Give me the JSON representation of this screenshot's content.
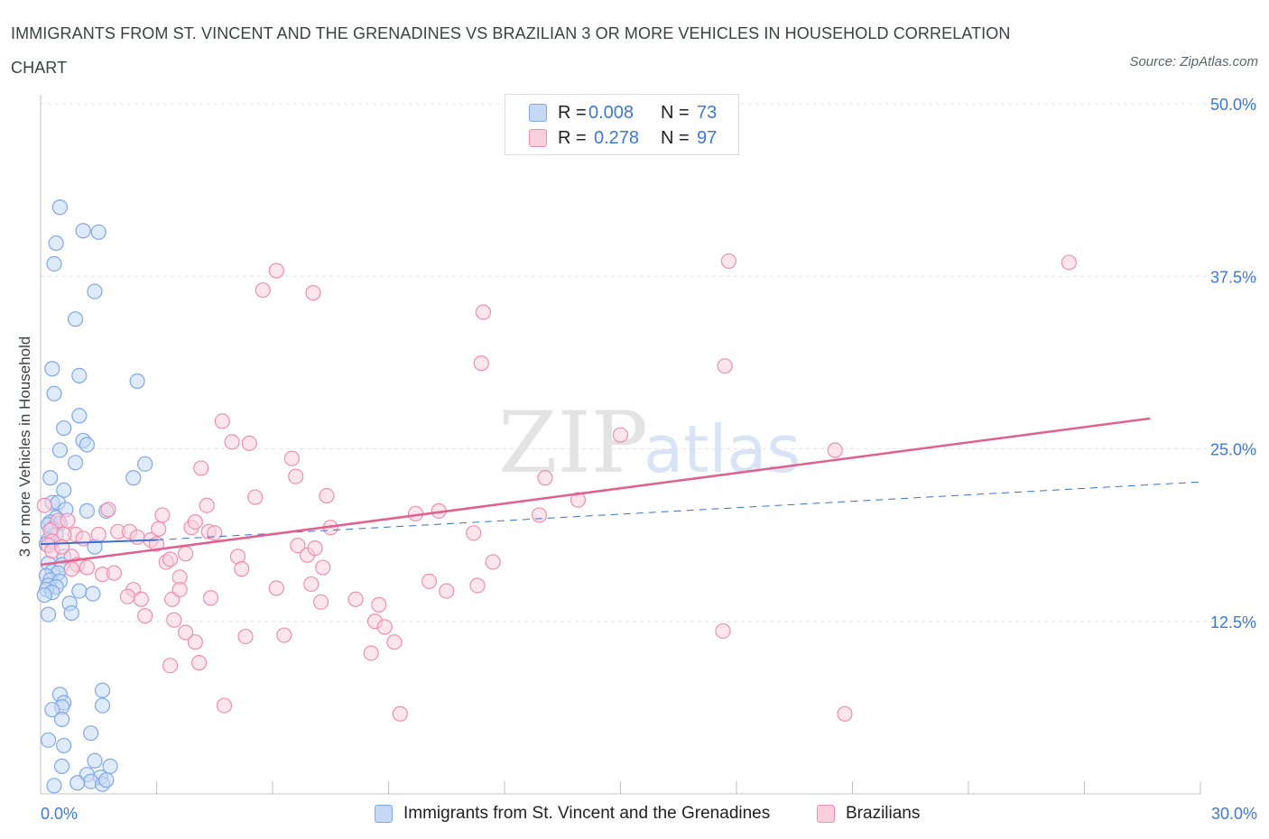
{
  "title": "IMMIGRANTS FROM ST. VINCENT AND THE GRENADINES VS BRAZILIAN 3 OR MORE VEHICLES IN HOUSEHOLD CORRELATION CHART",
  "source": "Source: ZipAtlas.com",
  "watermark": {
    "zip": "ZIP",
    "atlas": "atlas"
  },
  "colors": {
    "blue": "#7fa8e8",
    "blue_fill": "#c5d8f6",
    "blue_line": "#3a6fd0",
    "pink": "#ee8fb0",
    "pink_fill": "#f9cfdd",
    "pink_line": "#e0608e",
    "axis_text": "#3c78d8",
    "grid": "#dfe3ea"
  },
  "legend": {
    "rows": [
      {
        "r_label": "R =",
        "r_value": "0.008",
        "n_label": "N =",
        "n_value": "73"
      },
      {
        "r_label": "R =",
        "r_value": "0.278",
        "n_label": "N =",
        "n_value": "97"
      }
    ]
  },
  "bottom_legend": [
    "Immigrants from St. Vincent and the Grenadines",
    "Brazilians"
  ],
  "chart_data": {
    "type": "scatter",
    "title": "IMMIGRANTS FROM ST. VINCENT AND THE GRENADINES VS BRAZILIAN 3 OR MORE VEHICLES IN HOUSEHOLD CORRELATION CHART",
    "xlabel": "",
    "ylabel": "3 or more Vehicles in Household",
    "xlim": [
      0,
      30
    ],
    "ylim": [
      0,
      50
    ],
    "x_tick_labels": [
      "0.0%",
      "30.0%"
    ],
    "y_ticks": [
      12.5,
      25.0,
      37.5,
      50.0
    ],
    "y_tick_labels": [
      "12.5%",
      "25.0%",
      "37.5%",
      "50.0%"
    ],
    "grid": "horizontal dashed",
    "legend_position": "top-center",
    "series": [
      {
        "name": "Immigrants from St. Vincent and the Grenadines",
        "R": 0.008,
        "N": 73,
        "trend": {
          "x": [
            0,
            3
          ],
          "y": [
            18.1,
            18.4
          ],
          "style": "solid"
        },
        "trend_extension": {
          "x": [
            3,
            30
          ],
          "y": [
            18.4,
            22.6
          ],
          "style": "dashed"
        },
        "points": [
          [
            0.5,
            42.5
          ],
          [
            1.1,
            40.8
          ],
          [
            1.5,
            40.7
          ],
          [
            0.4,
            39.9
          ],
          [
            0.35,
            38.4
          ],
          [
            1.4,
            36.4
          ],
          [
            0.9,
            34.4
          ],
          [
            0.3,
            30.8
          ],
          [
            1.0,
            30.3
          ],
          [
            2.5,
            29.9
          ],
          [
            0.35,
            29.0
          ],
          [
            1.0,
            27.4
          ],
          [
            0.6,
            26.5
          ],
          [
            1.1,
            25.6
          ],
          [
            1.2,
            25.3
          ],
          [
            0.5,
            24.9
          ],
          [
            0.9,
            24.0
          ],
          [
            2.7,
            23.9
          ],
          [
            0.25,
            22.9
          ],
          [
            2.4,
            22.9
          ],
          [
            0.6,
            22.0
          ],
          [
            0.3,
            21.1
          ],
          [
            0.45,
            21.1
          ],
          [
            0.65,
            20.6
          ],
          [
            1.2,
            20.5
          ],
          [
            1.7,
            20.5
          ],
          [
            0.4,
            20.0
          ],
          [
            0.25,
            19.7
          ],
          [
            0.5,
            19.6
          ],
          [
            0.2,
            19.5
          ],
          [
            0.3,
            19.2
          ],
          [
            0.4,
            18.8
          ],
          [
            0.2,
            18.4
          ],
          [
            0.15,
            18.1
          ],
          [
            1.4,
            17.9
          ],
          [
            0.6,
            17.2
          ],
          [
            0.2,
            16.7
          ],
          [
            0.55,
            16.6
          ],
          [
            0.3,
            16.1
          ],
          [
            0.45,
            16.0
          ],
          [
            0.15,
            15.8
          ],
          [
            0.25,
            15.5
          ],
          [
            0.5,
            15.4
          ],
          [
            0.2,
            15.1
          ],
          [
            0.4,
            15.0
          ],
          [
            0.15,
            14.8
          ],
          [
            0.3,
            14.6
          ],
          [
            1.0,
            14.7
          ],
          [
            1.35,
            14.5
          ],
          [
            0.1,
            14.4
          ],
          [
            0.75,
            13.8
          ],
          [
            0.8,
            13.1
          ],
          [
            0.2,
            13.0
          ],
          [
            1.6,
            7.5
          ],
          [
            0.5,
            7.2
          ],
          [
            0.6,
            6.6
          ],
          [
            0.55,
            6.3
          ],
          [
            1.6,
            6.4
          ],
          [
            0.3,
            6.1
          ],
          [
            0.55,
            5.4
          ],
          [
            1.3,
            4.4
          ],
          [
            0.2,
            3.9
          ],
          [
            0.6,
            3.5
          ],
          [
            1.4,
            2.4
          ],
          [
            1.8,
            2.0
          ],
          [
            0.55,
            2.0
          ],
          [
            1.2,
            1.4
          ],
          [
            1.55,
            1.2
          ],
          [
            1.3,
            0.9
          ],
          [
            0.95,
            0.8
          ],
          [
            1.6,
            0.7
          ],
          [
            0.35,
            0.6
          ],
          [
            1.7,
            1.0
          ]
        ]
      },
      {
        "name": "Brazilians",
        "R": 0.278,
        "N": 97,
        "trend": {
          "x": [
            0,
            28.7
          ],
          "y": [
            16.6,
            27.2
          ],
          "style": "solid"
        },
        "points": [
          [
            0.1,
            20.9
          ],
          [
            0.45,
            19.8
          ],
          [
            0.25,
            19.1
          ],
          [
            0.7,
            19.8
          ],
          [
            0.9,
            18.8
          ],
          [
            0.6,
            18.8
          ],
          [
            0.3,
            18.3
          ],
          [
            0.2,
            18.0
          ],
          [
            1.1,
            18.5
          ],
          [
            0.8,
            17.2
          ],
          [
            0.95,
            16.6
          ],
          [
            1.2,
            16.4
          ],
          [
            0.8,
            16.3
          ],
          [
            1.6,
            15.9
          ],
          [
            1.9,
            16.0
          ],
          [
            1.75,
            20.6
          ],
          [
            2.0,
            19.0
          ],
          [
            2.3,
            19.0
          ],
          [
            2.5,
            18.6
          ],
          [
            2.85,
            18.4
          ],
          [
            3.0,
            18.1
          ],
          [
            3.15,
            20.2
          ],
          [
            3.05,
            19.2
          ],
          [
            3.25,
            16.8
          ],
          [
            2.4,
            14.8
          ],
          [
            2.25,
            14.3
          ],
          [
            2.6,
            14.1
          ],
          [
            2.7,
            12.9
          ],
          [
            3.4,
            14.1
          ],
          [
            3.35,
            17.0
          ],
          [
            3.6,
            15.7
          ],
          [
            3.6,
            14.8
          ],
          [
            3.45,
            12.6
          ],
          [
            3.75,
            11.7
          ],
          [
            4.0,
            11.0
          ],
          [
            3.35,
            9.3
          ],
          [
            4.1,
            9.5
          ],
          [
            3.75,
            17.4
          ],
          [
            3.9,
            19.3
          ],
          [
            4.0,
            19.7
          ],
          [
            4.15,
            23.6
          ],
          [
            4.35,
            19.0
          ],
          [
            4.5,
            18.9
          ],
          [
            4.4,
            14.2
          ],
          [
            4.3,
            20.9
          ],
          [
            4.7,
            27.0
          ],
          [
            4.95,
            25.5
          ],
          [
            5.1,
            17.2
          ],
          [
            5.2,
            16.3
          ],
          [
            5.4,
            25.4
          ],
          [
            5.55,
            21.5
          ],
          [
            5.3,
            11.4
          ],
          [
            4.75,
            6.4
          ],
          [
            5.75,
            36.5
          ],
          [
            6.1,
            37.9
          ],
          [
            6.1,
            14.9
          ],
          [
            6.3,
            11.5
          ],
          [
            6.5,
            24.3
          ],
          [
            6.6,
            23.0
          ],
          [
            6.65,
            18.0
          ],
          [
            6.9,
            17.3
          ],
          [
            7.1,
            17.8
          ],
          [
            7.3,
            16.4
          ],
          [
            7.0,
            15.2
          ],
          [
            7.25,
            13.9
          ],
          [
            7.4,
            21.6
          ],
          [
            7.5,
            19.3
          ],
          [
            7.05,
            36.3
          ],
          [
            8.15,
            14.1
          ],
          [
            8.75,
            13.7
          ],
          [
            8.65,
            12.5
          ],
          [
            8.55,
            10.2
          ],
          [
            8.9,
            12.1
          ],
          [
            9.15,
            11.0
          ],
          [
            9.3,
            5.8
          ],
          [
            9.7,
            20.3
          ],
          [
            10.3,
            20.5
          ],
          [
            10.05,
            15.4
          ],
          [
            10.5,
            14.7
          ],
          [
            11.2,
            18.9
          ],
          [
            11.3,
            15.1
          ],
          [
            11.7,
            16.8
          ],
          [
            11.4,
            31.2
          ],
          [
            11.45,
            34.9
          ],
          [
            12.9,
            20.2
          ],
          [
            13.05,
            22.9
          ],
          [
            13.9,
            21.3
          ],
          [
            15.0,
            26.0
          ],
          [
            17.8,
            38.6
          ],
          [
            17.7,
            31.0
          ],
          [
            17.65,
            11.8
          ],
          [
            20.55,
            24.9
          ],
          [
            20.8,
            5.8
          ],
          [
            26.6,
            38.5
          ],
          [
            0.3,
            17.6
          ],
          [
            0.55,
            17.9
          ],
          [
            1.5,
            18.8
          ]
        ]
      }
    ]
  }
}
